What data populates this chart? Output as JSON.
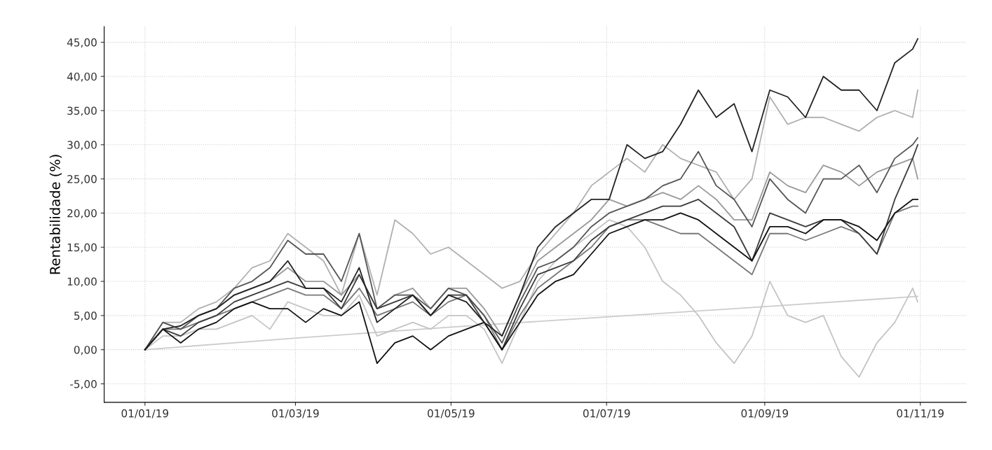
{
  "chart_data": {
    "type": "line",
    "ylabel": "Rentabilidade (%)",
    "x": [
      "2019-01-01",
      "2019-01-08",
      "2019-01-15",
      "2019-01-22",
      "2019-01-29",
      "2019-02-05",
      "2019-02-12",
      "2019-02-19",
      "2019-02-26",
      "2019-03-05",
      "2019-03-12",
      "2019-03-19",
      "2019-03-26",
      "2019-04-02",
      "2019-04-09",
      "2019-04-16",
      "2019-04-23",
      "2019-04-30",
      "2019-05-07",
      "2019-05-14",
      "2019-05-21",
      "2019-05-28",
      "2019-06-04",
      "2019-06-11",
      "2019-06-18",
      "2019-06-25",
      "2019-07-02",
      "2019-07-09",
      "2019-07-16",
      "2019-07-23",
      "2019-07-30",
      "2019-08-06",
      "2019-08-13",
      "2019-08-20",
      "2019-08-27",
      "2019-09-03",
      "2019-09-10",
      "2019-09-17",
      "2019-09-24",
      "2019-10-01",
      "2019-10-08",
      "2019-10-15",
      "2019-10-22",
      "2019-10-29",
      "2019-10-31"
    ],
    "series": [
      {
        "color": "#cccccc",
        "x": [
          "2019-01-01",
          "2019-03-01",
          "2019-05-01",
          "2019-07-01",
          "2019-09-01",
          "2019-10-31"
        ],
        "values": [
          0,
          1.7,
          3.3,
          4.8,
          6.3,
          7.8
        ]
      },
      {
        "color": "#c4c4c4",
        "values": [
          0,
          2,
          2,
          3,
          3,
          4,
          5,
          3,
          7,
          6,
          5,
          5,
          8,
          2,
          3,
          4,
          3,
          5,
          5,
          3,
          -2,
          4,
          10,
          13,
          15,
          17,
          19,
          18,
          15,
          10,
          8,
          5,
          1,
          -2,
          2,
          10,
          5,
          4,
          5,
          -1,
          -4,
          1,
          4,
          9,
          7
        ]
      },
      {
        "color": "#b0b0b0",
        "values": [
          0,
          4,
          4,
          6,
          7,
          9,
          12,
          13,
          17,
          15,
          13,
          8,
          17,
          8,
          19,
          17,
          14,
          15,
          13,
          11,
          9,
          10,
          14,
          17,
          20,
          24,
          26,
          28,
          26,
          30,
          28,
          27,
          26,
          22,
          25,
          37,
          33,
          34,
          34,
          33,
          32,
          34,
          35,
          34,
          38
        ]
      },
      {
        "color": "#999999",
        "values": [
          0,
          4,
          3,
          5,
          6,
          8,
          9,
          10,
          12,
          10,
          10,
          8,
          11,
          6,
          8,
          9,
          6,
          9,
          9,
          6,
          2,
          8,
          13,
          15,
          17,
          19,
          22,
          21,
          22,
          23,
          22,
          24,
          22,
          19,
          19,
          26,
          24,
          23,
          27,
          26,
          24,
          26,
          27,
          28,
          25
        ]
      },
      {
        "color": "#777777",
        "values": [
          0,
          3,
          3,
          4,
          5,
          6,
          7,
          8,
          9,
          8,
          8,
          6,
          9,
          5,
          6,
          7,
          5,
          7,
          8,
          5,
          0,
          5,
          9,
          11,
          13,
          15,
          18,
          19,
          19,
          18,
          17,
          17,
          15,
          13,
          11,
          17,
          17,
          16,
          17,
          18,
          17,
          14,
          20,
          21,
          21
        ]
      },
      {
        "color": "#555555",
        "values": [
          0,
          4,
          3,
          5,
          6,
          9,
          10,
          12,
          16,
          14,
          14,
          10,
          17,
          6,
          8,
          8,
          6,
          9,
          8,
          5,
          1,
          7,
          12,
          13,
          15,
          18,
          20,
          21,
          22,
          24,
          25,
          29,
          24,
          22,
          18,
          25,
          22,
          20,
          25,
          25,
          27,
          23,
          28,
          30,
          31
        ]
      },
      {
        "color": "#3a3a3a",
        "values": [
          0,
          3,
          2,
          4,
          5,
          7,
          8,
          9,
          10,
          9,
          9,
          6,
          11,
          6,
          7,
          8,
          5,
          8,
          8,
          4,
          0,
          6,
          11,
          12,
          13,
          16,
          18,
          19,
          20,
          21,
          21,
          22,
          20,
          18,
          13,
          20,
          19,
          18,
          19,
          19,
          17,
          14,
          22,
          28,
          30
        ]
      },
      {
        "color": "#111111",
        "values": [
          0,
          3,
          1,
          3,
          4,
          6,
          7,
          6,
          6,
          4,
          6,
          5,
          7,
          -2,
          1,
          2,
          0,
          2,
          3,
          4,
          0,
          4,
          8,
          10,
          11,
          14,
          17,
          18,
          19,
          19,
          20,
          19,
          17,
          15,
          13,
          18,
          18,
          17,
          19,
          19,
          18,
          16,
          20,
          22,
          22
        ]
      },
      {
        "color": "#222222",
        "values": [
          0,
          3,
          3.5,
          5,
          6,
          8,
          9,
          10,
          13,
          9,
          9,
          7,
          12,
          4,
          6,
          8,
          5,
          8,
          7,
          4,
          2,
          8,
          15,
          18,
          20,
          22,
          22,
          30,
          28,
          29,
          33,
          38,
          34,
          36,
          29,
          38,
          37,
          34,
          40,
          38,
          38,
          35,
          42,
          44,
          45.5
        ]
      }
    ],
    "xlim": [
      "2018-12-16",
      "2019-11-19"
    ],
    "ylim": [
      -7.7,
      47.3
    ],
    "xticks": [
      {
        "value": "2019-01-01",
        "label": "01/01/19"
      },
      {
        "value": "2019-03-01",
        "label": "01/03/19"
      },
      {
        "value": "2019-05-01",
        "label": "01/05/19"
      },
      {
        "value": "2019-07-01",
        "label": "01/07/19"
      },
      {
        "value": "2019-09-01",
        "label": "01/09/19"
      },
      {
        "value": "2019-11-01",
        "label": "01/11/19"
      }
    ],
    "yticks": [
      {
        "value": -5,
        "label": "-5,00"
      },
      {
        "value": 0,
        "label": "0,00"
      },
      {
        "value": 5,
        "label": "5,00"
      },
      {
        "value": 10,
        "label": "10,00"
      },
      {
        "value": 15,
        "label": "15,00"
      },
      {
        "value": 20,
        "label": "20,00"
      },
      {
        "value": 25,
        "label": "25,00"
      },
      {
        "value": 30,
        "label": "30,00"
      },
      {
        "value": 35,
        "label": "35,00"
      },
      {
        "value": 40,
        "label": "40,00"
      },
      {
        "value": 45,
        "label": "45,00"
      }
    ],
    "grid": true,
    "line_style": "solid"
  }
}
